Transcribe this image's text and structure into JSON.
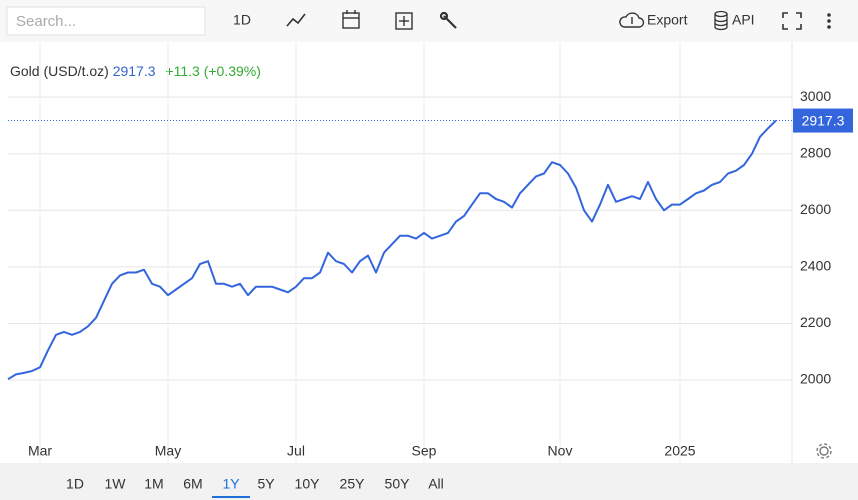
{
  "toolbar": {
    "search_placeholder": "Search...",
    "interval": "1D",
    "export": "Export",
    "api": "API",
    "ranges": [
      "1D",
      "1W",
      "1M",
      "6M",
      "1Y",
      "5Y",
      "10Y",
      "25Y",
      "50Y",
      "All"
    ],
    "active_range": 4
  },
  "chart_data": {
    "type": "line",
    "instrument": "Gold (USD/t.oz)",
    "price": 2917.3,
    "change": "+11.3 (+0.39%)",
    "categories": [
      null,
      null,
      null,
      null,
      "Mar",
      null,
      null,
      null,
      null,
      null,
      null,
      null,
      null,
      null,
      null,
      null,
      null,
      null,
      null,
      null,
      "May",
      null,
      null,
      null,
      null,
      null,
      null,
      null,
      null,
      null,
      null,
      null,
      null,
      null,
      null,
      null,
      "Jul",
      null,
      null,
      null,
      null,
      null,
      null,
      null,
      null,
      null,
      null,
      null,
      null,
      null,
      null,
      null,
      "Sep",
      null,
      null,
      null,
      null,
      null,
      null,
      null,
      null,
      null,
      null,
      null,
      null,
      null,
      null,
      null,
      null,
      "Nov",
      null,
      null,
      null,
      null,
      null,
      null,
      null,
      null,
      null,
      null,
      null,
      null,
      null,
      null,
      "2025",
      null,
      null,
      null,
      null,
      null,
      null,
      null,
      null,
      null,
      null,
      null,
      null
    ],
    "series": [
      {
        "name": "Gold",
        "color": "#3366dd",
        "values": [
          2003,
          2020,
          2025,
          2032,
          2045,
          2105,
          2160,
          2170,
          2160,
          2170,
          2190,
          2220,
          2280,
          2340,
          2370,
          2380,
          2380,
          2390,
          2340,
          2330,
          2300,
          2320,
          2340,
          2360,
          2410,
          2420,
          2340,
          2340,
          2330,
          2340,
          2300,
          2330,
          2330,
          2330,
          2320,
          2310,
          2330,
          2360,
          2360,
          2380,
          2450,
          2420,
          2410,
          2380,
          2420,
          2440,
          2380,
          2450,
          2480,
          2510,
          2510,
          2500,
          2520,
          2500,
          2510,
          2520,
          2560,
          2580,
          2620,
          2660,
          2660,
          2640,
          2630,
          2610,
          2660,
          2690,
          2720,
          2730,
          2770,
          2760,
          2730,
          2680,
          2600,
          2560,
          2620,
          2690,
          2630,
          2640,
          2650,
          2640,
          2700,
          2640,
          2600,
          2620,
          2620,
          2640,
          2660,
          2670,
          2690,
          2700,
          2730,
          2740,
          2760,
          2800,
          2860,
          2890,
          2917.3
        ]
      }
    ],
    "ylim": [
      1795,
      3195
    ],
    "yticks": [
      2000,
      2200,
      2400,
      2600,
      2800,
      3000
    ],
    "grid": true,
    "y_axis_side": "right"
  }
}
